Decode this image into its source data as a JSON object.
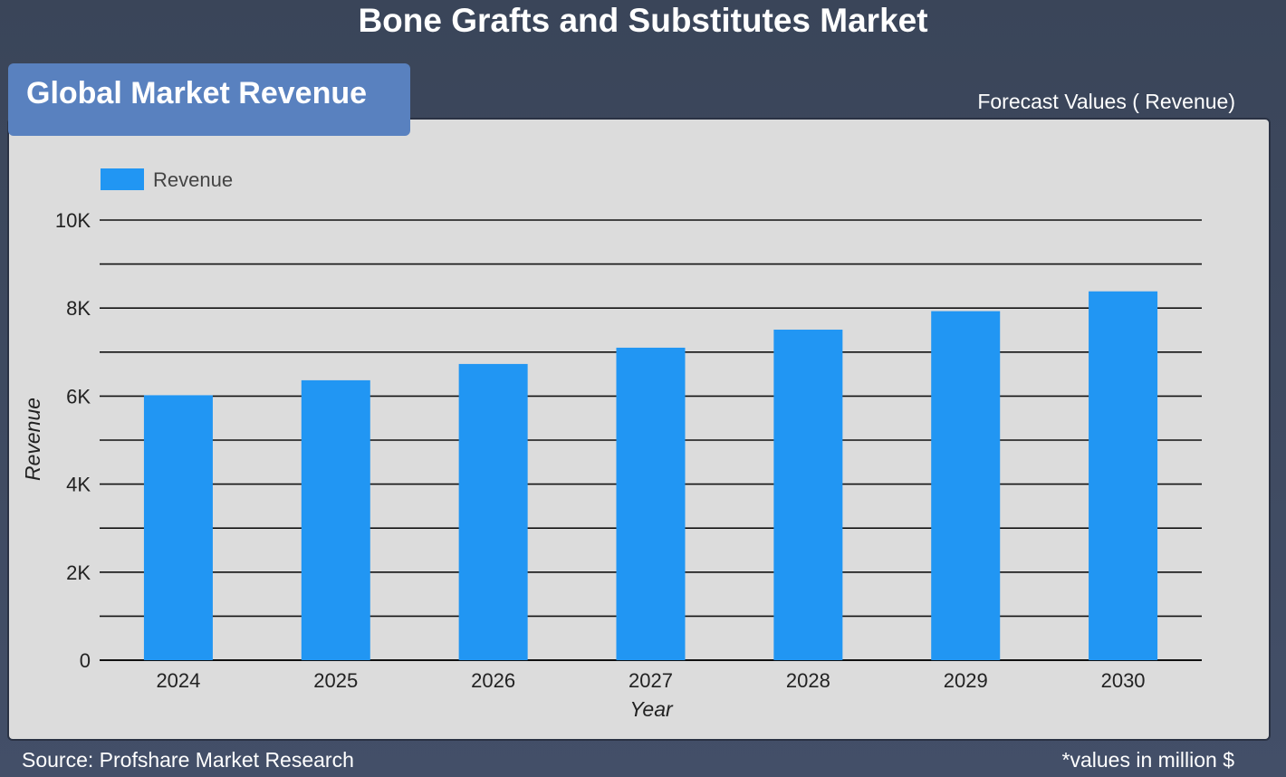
{
  "header": {
    "title": "Bone Grafts and Substitutes Market",
    "tab_label": "Global Market Revenue",
    "forecast_label": "Forecast Values ( Revenue)"
  },
  "footer": {
    "source": "Source: Profshare Market Research",
    "note": "*values in million $"
  },
  "colors": {
    "bar": "#2196f3",
    "panel": "#dcdcdc",
    "tab": "#5981bf"
  },
  "chart_data": {
    "type": "bar",
    "categories": [
      "2024",
      "2025",
      "2026",
      "2027",
      "2028",
      "2029",
      "2030"
    ],
    "series": [
      {
        "name": "Revenue",
        "values": [
          6020,
          6360,
          6730,
          7100,
          7510,
          7930,
          8380
        ]
      }
    ],
    "xlabel": "Year",
    "ylabel": "Revenue",
    "ylim": [
      0,
      10000
    ],
    "y_ticks": [
      0,
      2000,
      4000,
      6000,
      8000,
      10000
    ],
    "y_tick_labels": [
      "0",
      "2K",
      "4K",
      "6K",
      "8K",
      "10K"
    ],
    "grid": true,
    "legend_position": "top-left"
  }
}
